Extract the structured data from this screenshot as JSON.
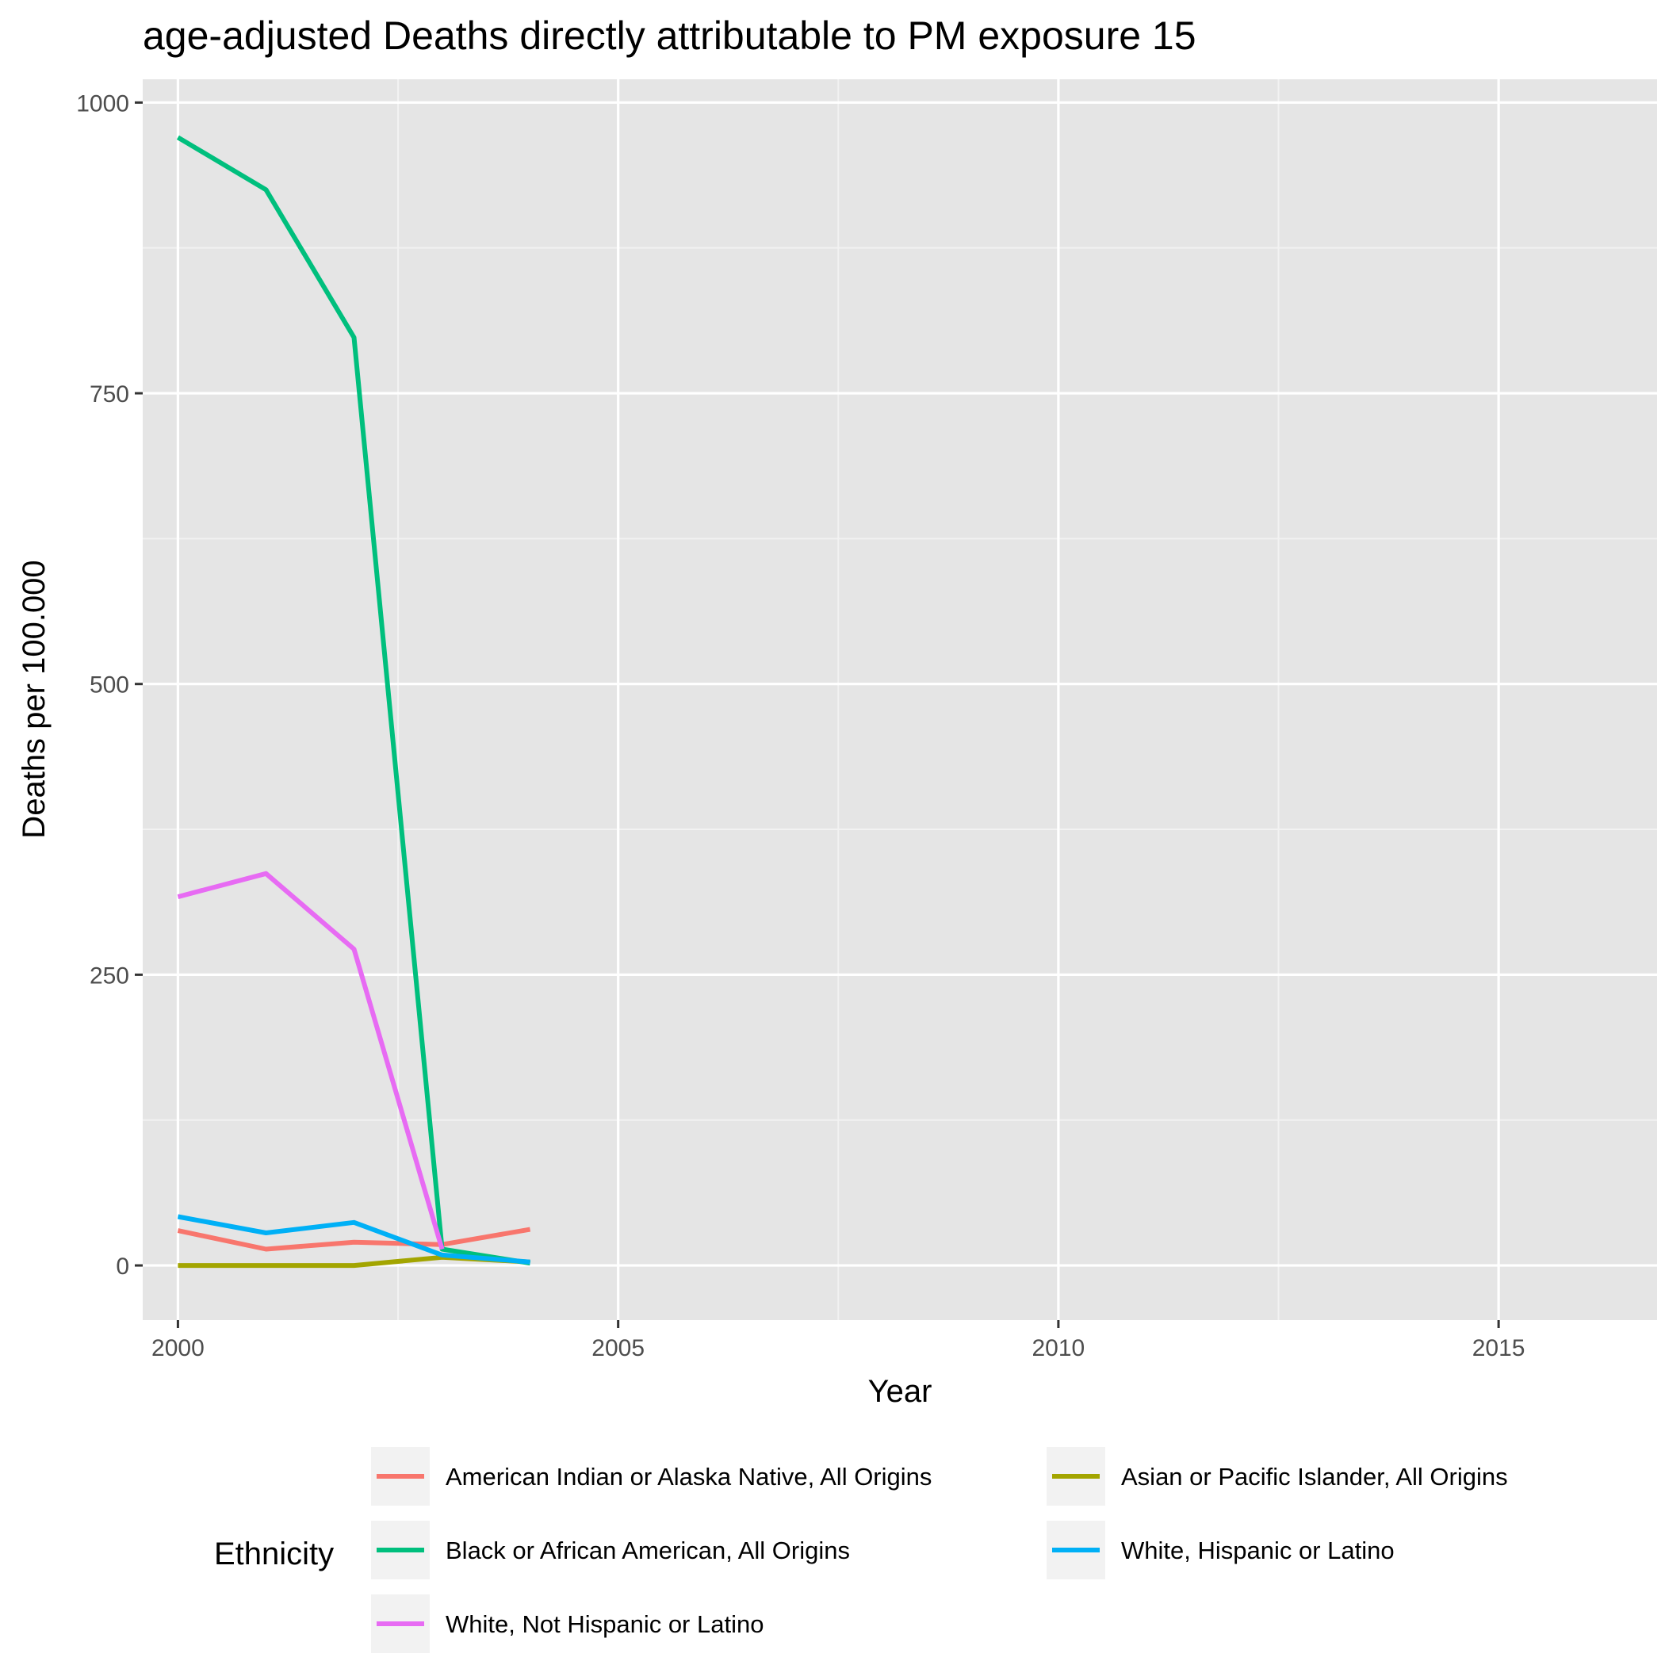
{
  "chart_data": {
    "type": "line",
    "title": "age-adjusted Deaths directly attributable to PM exposure 15",
    "xlabel": "Year",
    "ylabel": "Deaths per 100.000",
    "xlim": [
      1999.6,
      2016.8
    ],
    "ylim": [
      -47,
      1020
    ],
    "x_ticks": [
      2000,
      2005,
      2010,
      2015
    ],
    "y_ticks": [
      0,
      250,
      500,
      750,
      1000
    ],
    "grid": true,
    "legend": {
      "title": "Ethnicity",
      "position": "bottom"
    },
    "x": [
      2000,
      2001,
      2002,
      2003,
      2004
    ],
    "series": [
      {
        "name": "American Indian or Alaska Native, All Origins",
        "color": "#F8766D",
        "values": [
          30,
          14,
          20,
          18,
          31
        ]
      },
      {
        "name": "Asian or Pacific Islander, All Origins",
        "color": "#A3A500",
        "values": [
          0,
          0,
          0,
          7,
          3
        ]
      },
      {
        "name": "Black or African American, All Origins",
        "color": "#00BF7D",
        "values": [
          970,
          925,
          798,
          14,
          2
        ]
      },
      {
        "name": "White, Hispanic or Latino",
        "color": "#00B0F6",
        "values": [
          42,
          28,
          37,
          9,
          3
        ]
      },
      {
        "name": "White, Not Hispanic or Latino",
        "color": "#E76BF3",
        "values": [
          317,
          337,
          272,
          14,
          null
        ]
      }
    ]
  }
}
